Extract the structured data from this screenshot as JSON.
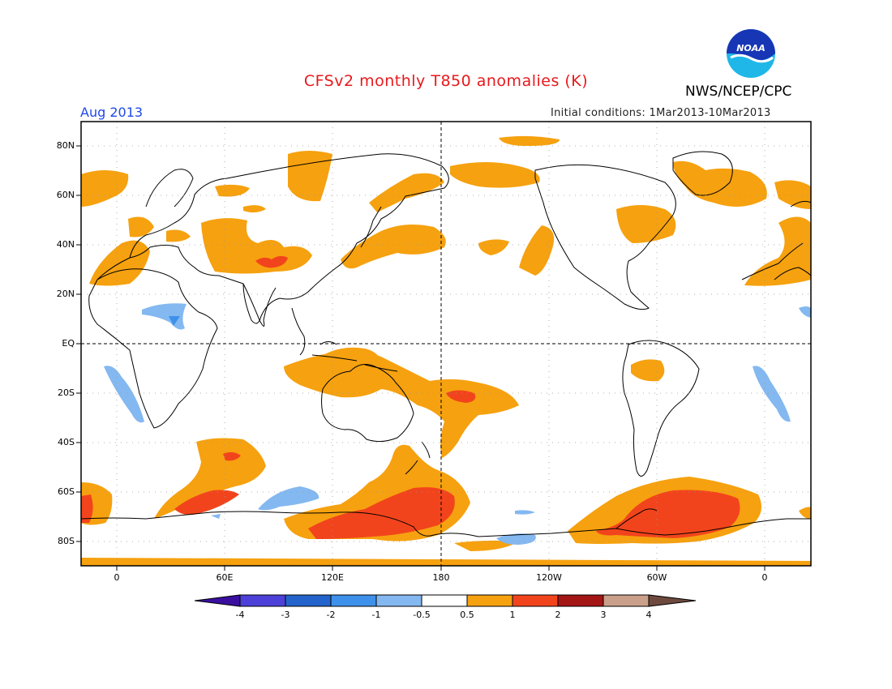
{
  "title": "CFSv2 monthly T850 anomalies (K)",
  "agency": "NWS/NCEP/CPC",
  "logo_text": "NOAA",
  "month": "Aug 2013",
  "initial_conditions": "Initial conditions: 1Mar2013-10Mar2013",
  "lat_ticks": [
    "80N",
    "60N",
    "40N",
    "20N",
    "EQ",
    "20S",
    "40S",
    "60S",
    "80S"
  ],
  "lon_ticks": [
    "0",
    "60E",
    "120E",
    "180",
    "120W",
    "60W",
    "0"
  ],
  "colorbar": {
    "labels": [
      "-4",
      "-3",
      "-2",
      "-1",
      "-0.5",
      "0.5",
      "1",
      "2",
      "3",
      "4"
    ],
    "colors": [
      "#3a0fa0",
      "#4c40d8",
      "#2364cc",
      "#3e91ea",
      "#84b8f0",
      "#ffffff",
      "#f6a10f",
      "#f2441c",
      "#a41515",
      "#caa08a",
      "#6e4a3e"
    ]
  }
}
